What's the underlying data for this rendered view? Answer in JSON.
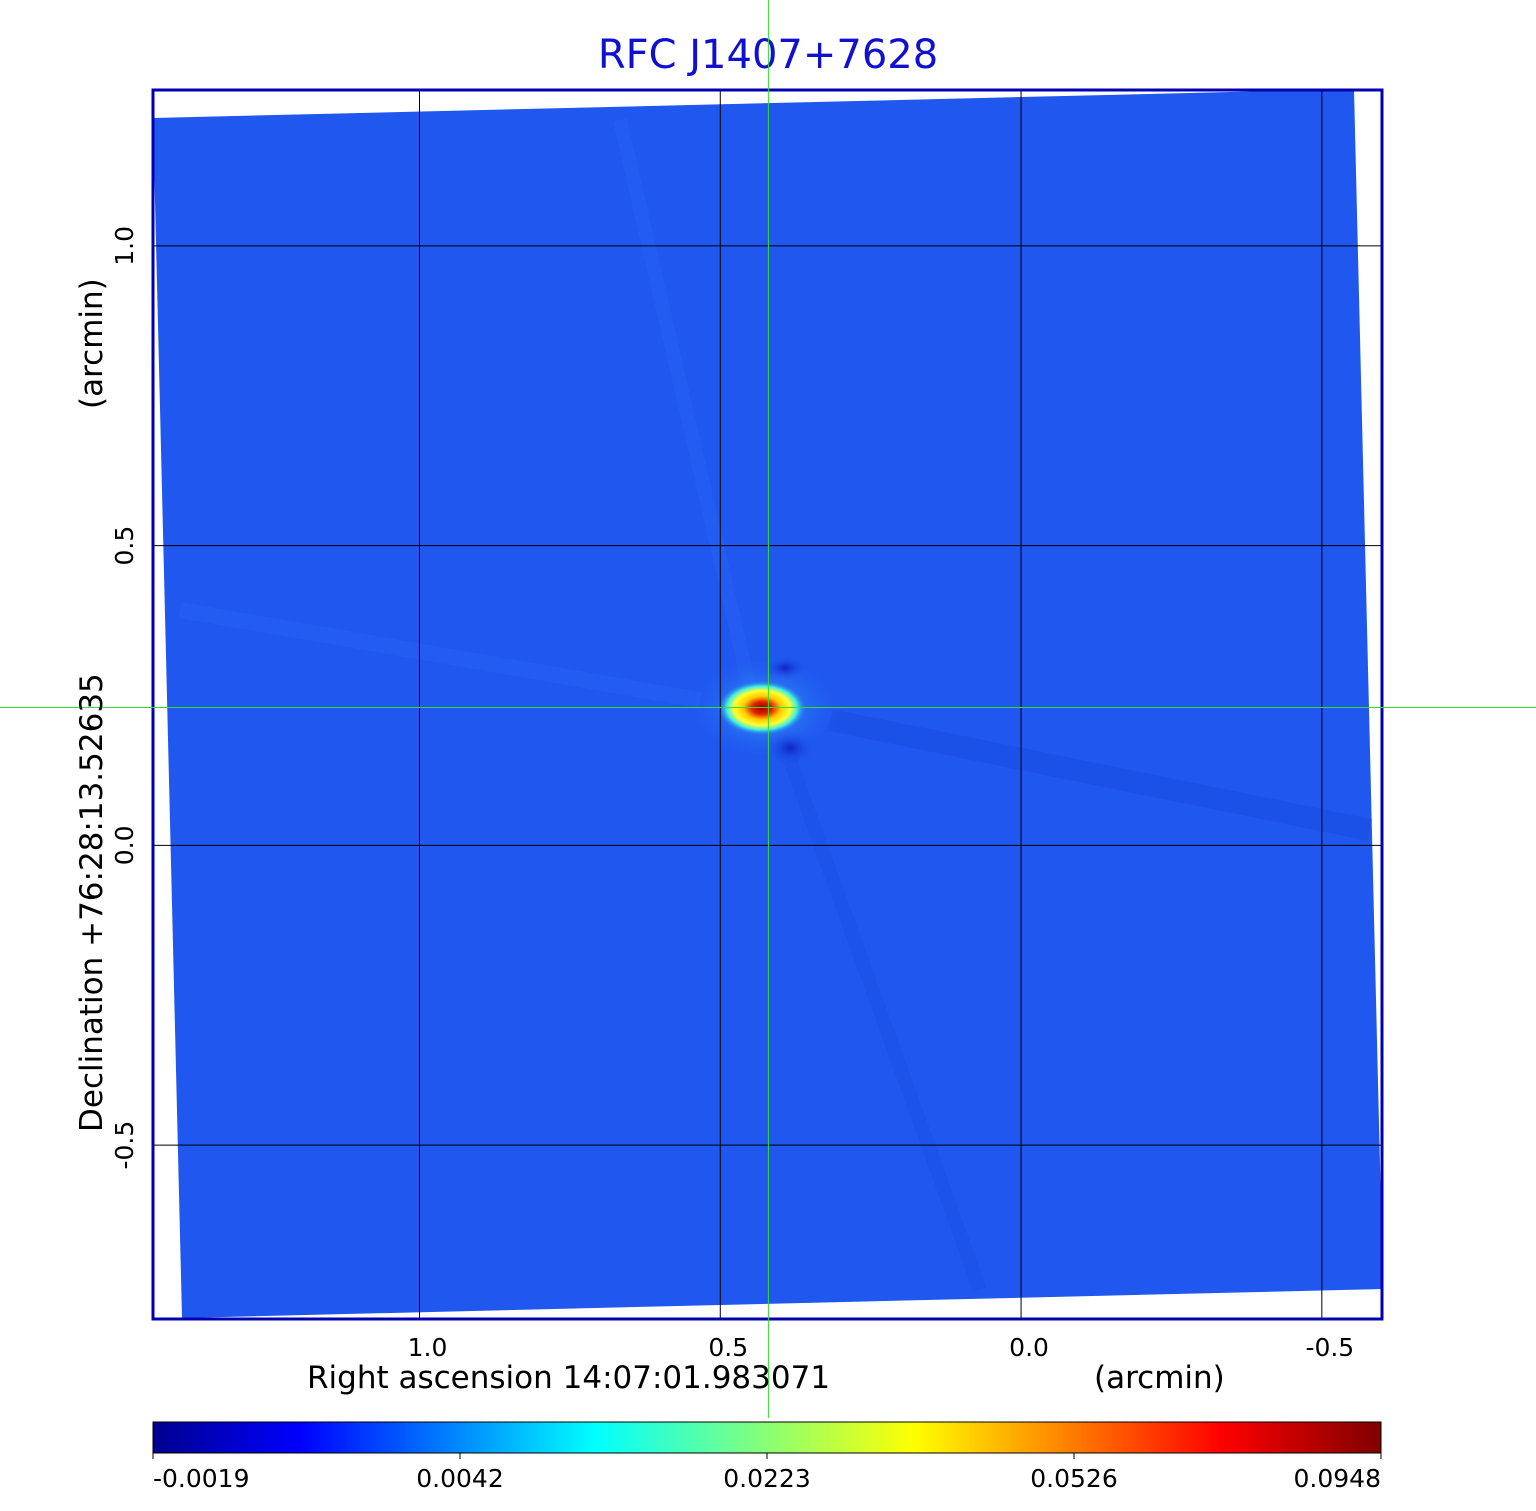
{
  "chart_data": {
    "type": "heatmap",
    "title": "RFC J1407+7628",
    "xlabel": "Right ascension  14:07:01.983071",
    "xunit": "(arcmin)",
    "ylabel": "Declination  +76:28:13.52635",
    "yunit": "(arcmin)",
    "x_ticks": [
      "1.0",
      "0.5",
      "0.0",
      "-0.5"
    ],
    "y_ticks": [
      "1.0",
      "0.5",
      "0.0",
      "-0.5"
    ],
    "x_tick_values": [
      1.0,
      0.5,
      0.0,
      -0.5
    ],
    "y_tick_values": [
      1.0,
      0.5,
      0.0,
      -0.5
    ],
    "xlim": [
      1.443,
      -0.6
    ],
    "ylim": [
      -0.79,
      1.26
    ],
    "colorbar": {
      "ticks": [
        "-0.0019",
        "0.0042",
        "0.0223",
        "0.0526",
        "0.0948"
      ],
      "colormap": "jet"
    },
    "source_peak": {
      "x": 0.42,
      "y": 0.23,
      "peak_value": 0.0948
    },
    "crosshair": {
      "x": 0.42,
      "y": 0.23
    },
    "grid": true,
    "colors": {
      "title": "#1010d0",
      "frame": "#0000b0",
      "background_field": "#1f57ef",
      "crosshair": "#33dd33",
      "grid": "#000000"
    }
  }
}
